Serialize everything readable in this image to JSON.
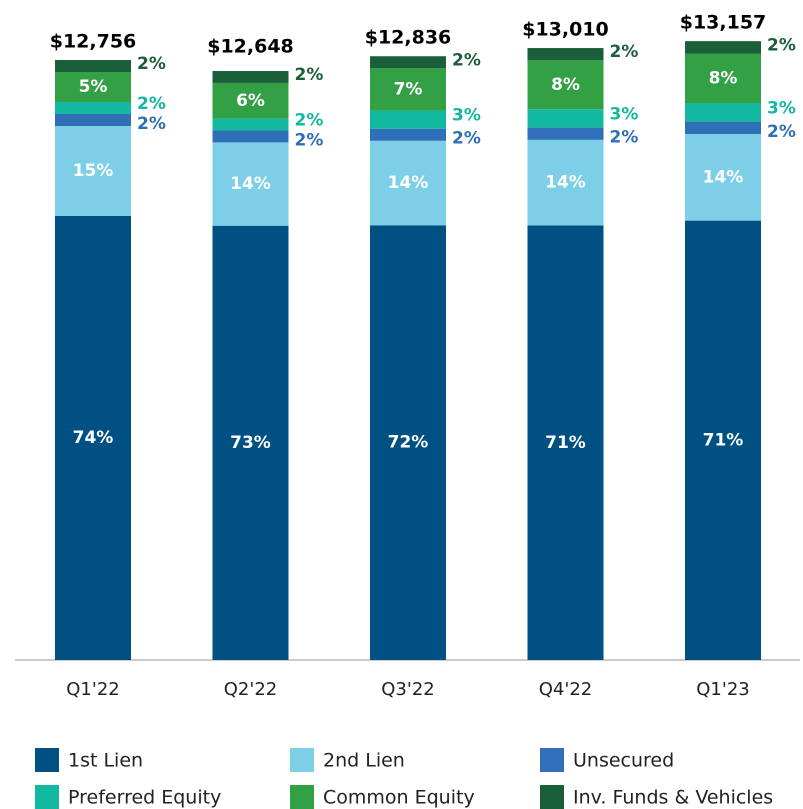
{
  "chart_data": {
    "type": "stacked-bar",
    "categories": [
      "Q1'22",
      "Q2'22",
      "Q3'22",
      "Q4'22",
      "Q1'23"
    ],
    "totals": {
      "values": [
        12756,
        12648,
        12836,
        13010,
        13157
      ],
      "value_labels": [
        "$12,756",
        "$12,648",
        "$12,836",
        "$13,010",
        "$13,157"
      ]
    },
    "series": [
      {
        "name": "1st Lien",
        "color": "#005083",
        "values": [
          74,
          73,
          72,
          71,
          71
        ],
        "value_labels": [
          "74%",
          "73%",
          "72%",
          "71%",
          "71%"
        ]
      },
      {
        "name": "2nd Lien",
        "color": "#7dcfe8",
        "values": [
          15,
          14,
          14,
          14,
          14
        ],
        "value_labels": [
          "15%",
          "14%",
          "14%",
          "14%",
          "14%"
        ]
      },
      {
        "name": "Unsecured",
        "color": "#2f6fb8",
        "values": [
          2,
          2,
          2,
          2,
          2
        ],
        "value_labels": [
          "2%",
          "2%",
          "2%",
          "2%",
          "2%"
        ]
      },
      {
        "name": "Preferred Equity",
        "color": "#13b8a0",
        "values": [
          2,
          2,
          3,
          3,
          3
        ],
        "value_labels": [
          "2%",
          "2%",
          "3%",
          "3%",
          "3%"
        ]
      },
      {
        "name": "Common Equity",
        "color": "#34a046",
        "values": [
          5,
          6,
          7,
          8,
          8
        ],
        "value_labels": [
          "5%",
          "6%",
          "7%",
          "8%",
          "8%"
        ]
      },
      {
        "name": "Inv. Funds & Vehicles",
        "color": "#1a5e3a",
        "values": [
          2,
          2,
          2,
          2,
          2
        ],
        "value_labels": [
          "2%",
          "2%",
          "2%",
          "2%",
          "2%"
        ]
      }
    ]
  }
}
